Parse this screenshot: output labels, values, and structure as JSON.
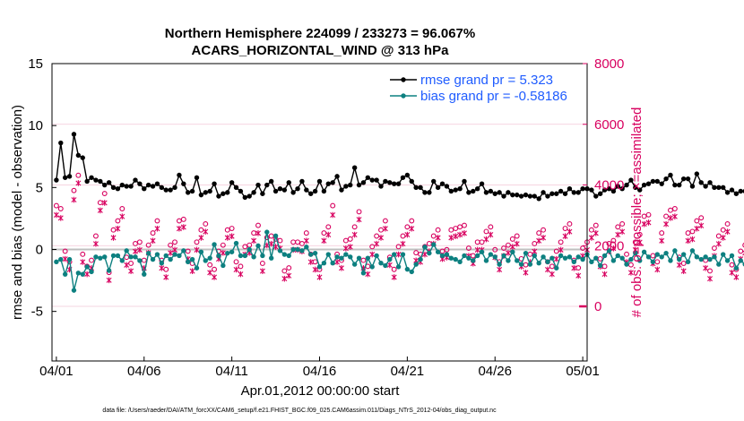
{
  "chart_data": {
    "type": "line",
    "title_line1": "Northern Hemisphere 224099 / 233273 = 96.067%",
    "title_line2": "ACARS_HORIZONTAL_WIND @ 313 hPa",
    "ylabel_left": "rmse and bias (model - observation)",
    "ylabel_right": "# of obs: o=possible; ×=assimilated",
    "xlabel": "Apr.01,2012 00:00:00 start",
    "footer": "data file: /Users/raeder/DAI/ATM_forcXX/CAM6_setup/f.e21.FHIST_BGC.f09_025.CAM6assim.011/Diags_NTrS_2012-04/obs_diag_output.nc",
    "x_tick_labels": [
      "04/01",
      "04/06",
      "04/11",
      "04/16",
      "04/21",
      "04/26",
      "05/01"
    ],
    "x_tick_days": [
      0,
      5,
      10,
      15,
      20,
      25,
      30
    ],
    "xlim": [
      -0.25,
      30.25
    ],
    "ylim_left": [
      -9,
      15
    ],
    "yticks_left": [
      15,
      10,
      5,
      0,
      -5
    ],
    "ylim_right": [
      -1800,
      8000
    ],
    "yticks_right": [
      8000,
      6000,
      4000,
      2000,
      0
    ],
    "time_step_days": 0.25,
    "legend": [
      "rmse grand pr = 5.323",
      "bias grand pr = -0.58186"
    ],
    "colors": {
      "rmse": "#000000",
      "bias": "#0d8080",
      "obs": "#d8005f",
      "zero_line": "#bfbfbf",
      "grid": "#f3c6d6",
      "legend_text": "#1f5cff"
    },
    "series": [
      {
        "name": "rmse",
        "axis": "left",
        "values": [
          5.6,
          8.6,
          5.8,
          5.9,
          9.3,
          7.6,
          7.4,
          5.5,
          5.8,
          5.6,
          5.5,
          5.2,
          5.4,
          5.0,
          4.9,
          5.2,
          5.1,
          5.1,
          5.6,
          5.3,
          4.9,
          5.2,
          5.1,
          5.3,
          5.0,
          4.8,
          4.8,
          5.0,
          6.0,
          5.3,
          4.6,
          4.7,
          5.8,
          4.4,
          4.6,
          4.7,
          5.3,
          4.3,
          4.5,
          4.6,
          5.4,
          5.0,
          4.7,
          4.2,
          4.3,
          4.6,
          5.2,
          4.5,
          5.2,
          5.5,
          4.7,
          4.9,
          4.8,
          5.4,
          4.6,
          4.9,
          5.5,
          4.8,
          4.5,
          4.7,
          5.5,
          4.7,
          5.3,
          5.4,
          5.9,
          4.8,
          5.1,
          5.2,
          6.6,
          5.2,
          5.4,
          5.8,
          5.6,
          5.6,
          5.1,
          5.5,
          5.4,
          5.3,
          5.3,
          5.8,
          6.0,
          5.5,
          5.0,
          5.0,
          4.6,
          4.6,
          5.5,
          5.0,
          5.3,
          5.1,
          4.7,
          4.8,
          4.9,
          5.5,
          4.6,
          4.7,
          4.9,
          5.3,
          4.6,
          4.7,
          4.5,
          4.6,
          4.3,
          4.6,
          4.4,
          4.4,
          4.3,
          4.4,
          4.3,
          4.3,
          4.1,
          4.6,
          4.3,
          4.5,
          4.5,
          4.7,
          4.5,
          4.9,
          4.6,
          4.6,
          4.9,
          4.9,
          4.8,
          4.3,
          4.5,
          4.8,
          4.9,
          4.7,
          5.1,
          4.9,
          5.2,
          5.6,
          5.0,
          4.8,
          5.2,
          5.3,
          5.5,
          5.5,
          5.3,
          5.7,
          6.0,
          5.2,
          5.2,
          5.7,
          5.7,
          5.1,
          6.1,
          5.4,
          5.1,
          5.4,
          5.0,
          5.0,
          5.0,
          4.6,
          4.8,
          4.5,
          4.7,
          4.7,
          4.8,
          4.6,
          5.0,
          4.9,
          4.7,
          5.2,
          5.5,
          5.3,
          5.6,
          5.5,
          5.3,
          5.3,
          5.5,
          5.4,
          6.1,
          4.9
        ]
      },
      {
        "name": "bias",
        "axis": "left",
        "values": [
          -1.0,
          -0.8,
          -2.0,
          -0.8,
          -3.3,
          -1.9,
          -2.0,
          -1.4,
          -1.8,
          -0.6,
          -0.7,
          -0.6,
          -1.7,
          -0.5,
          -0.5,
          -0.9,
          -0.1,
          -0.6,
          -0.6,
          -0.9,
          -2.0,
          -0.3,
          -0.8,
          -0.4,
          -1.1,
          -0.5,
          -0.8,
          -0.4,
          -0.5,
          -0.1,
          -1.0,
          -0.8,
          -1.5,
          -0.2,
          -0.9,
          -0.7,
          0.4,
          -0.5,
          -1.3,
          -0.3,
          -0.2,
          0.5,
          -0.5,
          -0.5,
          0.0,
          -0.6,
          0.3,
          -0.5,
          1.4,
          -0.7,
          1.1,
          -0.1,
          -0.4,
          -0.5,
          0.0,
          0.0,
          -0.1,
          0.2,
          -0.4,
          -0.3,
          -1.4,
          -1.1,
          -0.4,
          -1.1,
          -0.6,
          -0.7,
          -0.4,
          -0.6,
          -1.2,
          -0.7,
          -1.9,
          -0.7,
          -1.4,
          -0.5,
          -1.1,
          -1.3,
          -0.8,
          -0.4,
          -1.4,
          -0.4,
          -1.6,
          -1.8,
          -1.2,
          -0.8,
          0.2,
          -0.3,
          0.4,
          -0.2,
          -0.5,
          -0.4,
          -0.7,
          -0.8,
          -1.0,
          -0.5,
          -0.7,
          -0.9,
          -0.5,
          -0.2,
          -0.9,
          -0.4,
          -0.6,
          -1.2,
          -0.5,
          -0.9,
          -0.2,
          -0.9,
          -1.2,
          -0.3,
          -1.2,
          -0.5,
          -1.1,
          -0.6,
          -1.0,
          -0.7,
          -1.5,
          -0.5,
          -0.7,
          -0.6,
          -1.0,
          -0.6,
          -0.8,
          -0.4,
          -1.0,
          -0.7,
          -1.3,
          -0.5,
          -0.1,
          -0.9,
          -0.5,
          -0.7,
          -1.2,
          -0.8,
          -0.3,
          -0.9,
          -0.2,
          -0.6,
          -1.0,
          -0.4,
          -0.6,
          -0.3,
          -0.9,
          -0.1,
          -0.8,
          -0.4,
          -1.0,
          -0.1,
          -0.6,
          -0.8,
          -0.6,
          -0.8,
          -0.6,
          -1.2,
          -0.4,
          -0.9,
          -0.5,
          -1.5,
          -0.9,
          -1.2,
          -1.1,
          -1.6,
          -1.0,
          -1.8,
          -1.4,
          -1.2,
          -0.6,
          -0.2,
          -0.5,
          -0.3,
          -0.4,
          -1.0,
          -0.7,
          -0.4,
          -0.2,
          -0.8,
          -0.2,
          -0.2
        ]
      },
      {
        "name": "obs_possible",
        "axis": "right",
        "values": [
          3200,
          3100,
          1700,
          1350,
          3700,
          4200,
          1600,
          1200,
          1400,
          2200,
          3300,
          3600,
          1000,
          2400,
          2700,
          3100,
          1500,
          1300,
          1950,
          2000,
          1400,
          1900,
          2300,
          2700,
          1400,
          1100,
          1900,
          2000,
          2700,
          2750,
          1700,
          1300,
          2000,
          2400,
          2600,
          1250,
          1100,
          1700,
          1900,
          2400,
          2450,
          1350,
          1200,
          1850,
          1900,
          2300,
          2550,
          1300,
          2150,
          2200,
          2100,
          2050,
          1050,
          1150,
          2000,
          2000,
          1950,
          2300,
          1600,
          1350,
          1100,
          2300,
          2500,
          3200,
          1600,
          1400,
          2050,
          2100,
          2500,
          3000,
          1400,
          1200,
          1850,
          2200,
          2400,
          2700,
          1500,
          1100,
          1850,
          2200,
          2500,
          2700,
          1650,
          1600,
          1850,
          1950,
          2200,
          2400,
          1700,
          1750,
          2400,
          2450,
          2500,
          2550,
          1800,
          1550,
          2000,
          2000,
          2350,
          2500,
          1750,
          1350,
          1800,
          1900,
          2100,
          2200,
          1450,
          1250,
          1600,
          1950,
          2300,
          2400,
          1350,
          1200,
          1700,
          2000,
          2450,
          2600,
          1400,
          1150,
          1800,
          2000,
          2400,
          2550,
          1450,
          1200,
          1950,
          2050,
          2500,
          2600,
          1600,
          1250,
          2000,
          2250,
          2850,
          2900,
          1550,
          1350,
          2300,
          2850,
          3050,
          3100,
          1500,
          1300,
          2300,
          2350,
          2700,
          2800,
          1400,
          1050,
          1800,
          2200,
          2400,
          2600,
          1250,
          1100,
          1700,
          1900,
          2150,
          2450,
          1300,
          1150,
          1700,
          1900,
          2450,
          2650,
          1450,
          1300,
          1800,
          2500,
          2700,
          2200
        ]
      },
      {
        "name": "obs_assimilated",
        "axis": "right",
        "values": [
          3100,
          3000,
          1650,
          1300,
          3600,
          4150,
          1550,
          1150,
          1350,
          2150,
          3250,
          3500,
          950,
          2350,
          2650,
          3050,
          1450,
          1250,
          1900,
          1950,
          1350,
          1850,
          2250,
          2650,
          1350,
          1050,
          1850,
          1950,
          2650,
          2700,
          1650,
          1250,
          1950,
          2350,
          2550,
          1200,
          1050,
          1650,
          1850,
          2350,
          2400,
          1300,
          1150,
          1800,
          1850,
          2250,
          2500,
          1250,
          2100,
          2150,
          2050,
          2000,
          1000,
          1100,
          1950,
          1950,
          1900,
          2250,
          1550,
          1300,
          1050,
          2250,
          2450,
          3100,
          1550,
          1350,
          2000,
          2050,
          2450,
          2950,
          1350,
          1150,
          1800,
          2150,
          2350,
          2650,
          1450,
          1050,
          1800,
          2150,
          2450,
          2650,
          1600,
          1550,
          1800,
          1900,
          2150,
          2350,
          1650,
          1700,
          2350,
          2400,
          2450,
          2500,
          1750,
          1500,
          1950,
          1950,
          2300,
          2450,
          1700,
          1300,
          1750,
          1850,
          2050,
          2150,
          1400,
          1200,
          1550,
          1900,
          2250,
          2350,
          1300,
          1150,
          1650,
          1950,
          2400,
          2550,
          1350,
          1100,
          1750,
          1950,
          2350,
          2500,
          1400,
          1150,
          1900,
          2000,
          2450,
          2550,
          1550,
          1200,
          1950,
          2200,
          2800,
          2850,
          1500,
          1300,
          2250,
          2800,
          3000,
          3050,
          1450,
          1250,
          2250,
          2300,
          2650,
          2750,
          1350,
          1000,
          1750,
          2150,
          2350,
          2550,
          1200,
          1050,
          1650,
          1850,
          2100,
          2400,
          1250,
          1100,
          1650,
          1850,
          2400,
          2600,
          1400,
          1250,
          1750,
          2450,
          2650,
          2150
        ]
      }
    ],
    "end_marker": {
      "x_day": 30,
      "value": 0,
      "axis": "right"
    }
  }
}
